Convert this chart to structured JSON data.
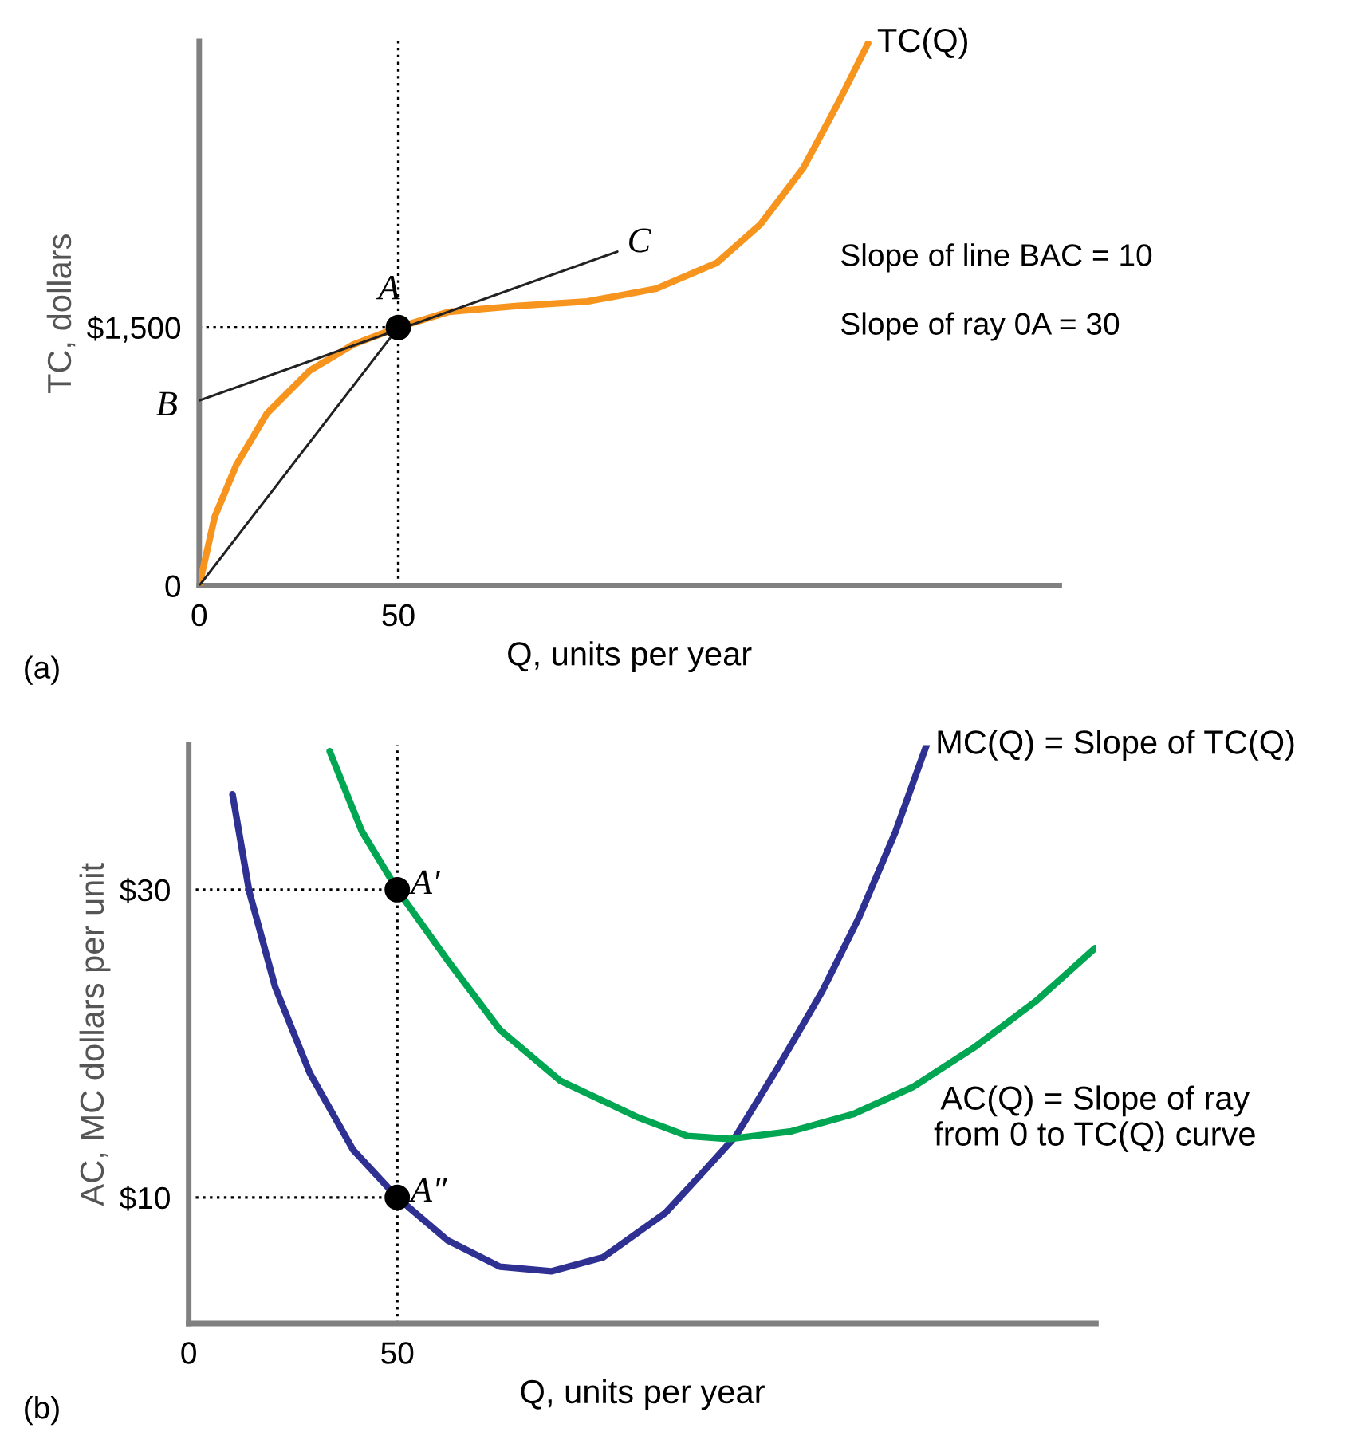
{
  "chart_data": [
    {
      "type": "line",
      "xlabel": "Q, units per year",
      "ylabel": "TC, dollars",
      "xlim": [
        0,
        216
      ],
      "ylim": [
        0,
        3160
      ],
      "xticks": [
        0,
        50
      ],
      "yticks": [
        0,
        {
          "value": 1500,
          "label": "$1,500"
        }
      ],
      "grid": false,
      "legend": false,
      "series": [
        {
          "name": "TC(Q)",
          "color": "#f7941d",
          "x": [
            0,
            3.9,
            9.3,
            17,
            27.8,
            38.7,
            50,
            62.6,
            80,
            97.4,
            114.8,
            130,
            141,
            151.7,
            160.4,
            168
          ],
          "values": [
            0,
            400,
            700,
            1000,
            1250,
            1400,
            1500,
            1590,
            1625,
            1650,
            1725,
            1875,
            2100,
            2425,
            2800,
            3150
          ]
        },
        {
          "type": "line",
          "color": "#222222",
          "x": [
            0,
            105
          ],
          "values": [
            1075,
            1940
          ]
        },
        {
          "type": "line",
          "color": "#222222",
          "x": [
            0,
            50
          ],
          "values": [
            0,
            1500
          ]
        },
        {
          "type": "scatter",
          "color": "#000000",
          "marker": "circle",
          "x": [
            50
          ],
          "values": [
            1500
          ]
        }
      ],
      "ref_lines": [
        {
          "axis": "x",
          "value": 50,
          "line_style": "dotted"
        },
        {
          "axis": "y",
          "value": 1500,
          "line_style": "dotted"
        }
      ],
      "annotations": [
        "B",
        "A",
        "C",
        "Slope of line BAC = 10",
        "Slope of ray 0A = 30",
        "(a)"
      ]
    },
    {
      "type": "line",
      "xlabel": "Q, units per year",
      "ylabel": "AC, MC dollars per unit",
      "xlim": [
        0,
        217.5
      ],
      "ylim": [
        1.8,
        39.4
      ],
      "xticks": [
        0,
        50
      ],
      "yticks": [
        {
          "value": 10,
          "label": "$10"
        },
        {
          "value": 30,
          "label": "$30"
        }
      ],
      "grid": false,
      "legend": false,
      "series": [
        {
          "name": "MC(Q) = Slope of TC(Q)",
          "color": "#2e3192",
          "x": [
            10.5,
            14.5,
            20.7,
            29.0,
            39.4,
            50,
            62.1,
            74.6,
            86.9,
            99.3,
            114.3,
            122.5,
            131.2,
            141.6,
            151.9,
            160.7,
            169.5,
            176.9
          ],
          "values": [
            36.2,
            29.9,
            23.7,
            18.1,
            13.1,
            10,
            7.2,
            5.5,
            5.2,
            6.1,
            9.0,
            11.4,
            14.0,
            18.6,
            23.4,
            28.2,
            33.8,
            39.4
          ]
        },
        {
          "name": "AC(Q) = Slope of ray\nfrom 0 to TC(Q) curve",
          "color": "#00a651",
          "x": [
            33.8,
            41.5,
            50,
            62.1,
            74.6,
            89.0,
            107.7,
            119.5,
            129.8,
            144.5,
            159.2,
            173.8,
            188.6,
            203.3,
            217.3
          ],
          "values": [
            39.0,
            33.8,
            30,
            25.4,
            20.9,
            17.6,
            15.2,
            14.0,
            13.8,
            14.3,
            15.4,
            17.2,
            19.8,
            22.8,
            26.2
          ]
        },
        {
          "type": "scatter",
          "color": "#000000",
          "marker": "circle",
          "x": [
            50,
            50
          ],
          "values": [
            30,
            10
          ]
        }
      ],
      "ref_lines": [
        {
          "axis": "x",
          "value": 50,
          "line_style": "dotted"
        },
        {
          "axis": "y",
          "value": 30,
          "line_style": "dotted"
        },
        {
          "axis": "y",
          "value": 10,
          "line_style": "dotted"
        }
      ],
      "annotations": [
        {
          "text": "A′",
          "x": 50,
          "y": 30
        },
        {
          "text": "A″",
          "x": 50,
          "y": 10
        },
        "(b)"
      ]
    }
  ]
}
